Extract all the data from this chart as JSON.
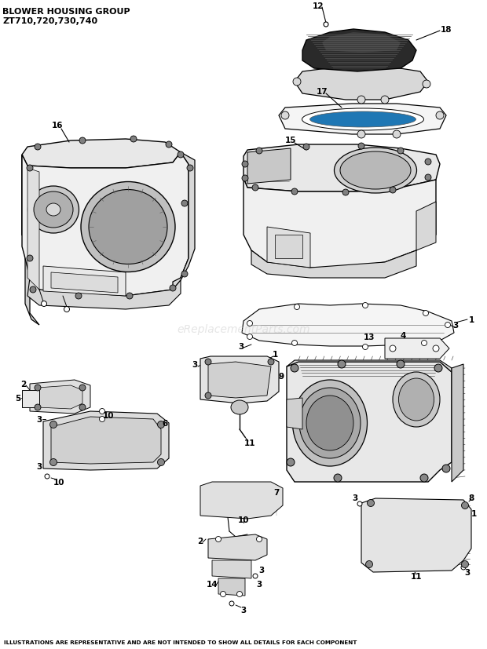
{
  "title_line1": "BLOWER HOUSING GROUP",
  "title_line2": "ZT710,720,730,740",
  "footer": "ILLUSTRATIONS ARE REPRESENTATIVE AND ARE NOT INTENDED TO SHOW ALL DETAILS FOR EACH COMPONENT",
  "watermark": "eReplacementParts.com",
  "bg_color": "#ffffff",
  "fig_width": 6.2,
  "fig_height": 8.28,
  "dpi": 100
}
